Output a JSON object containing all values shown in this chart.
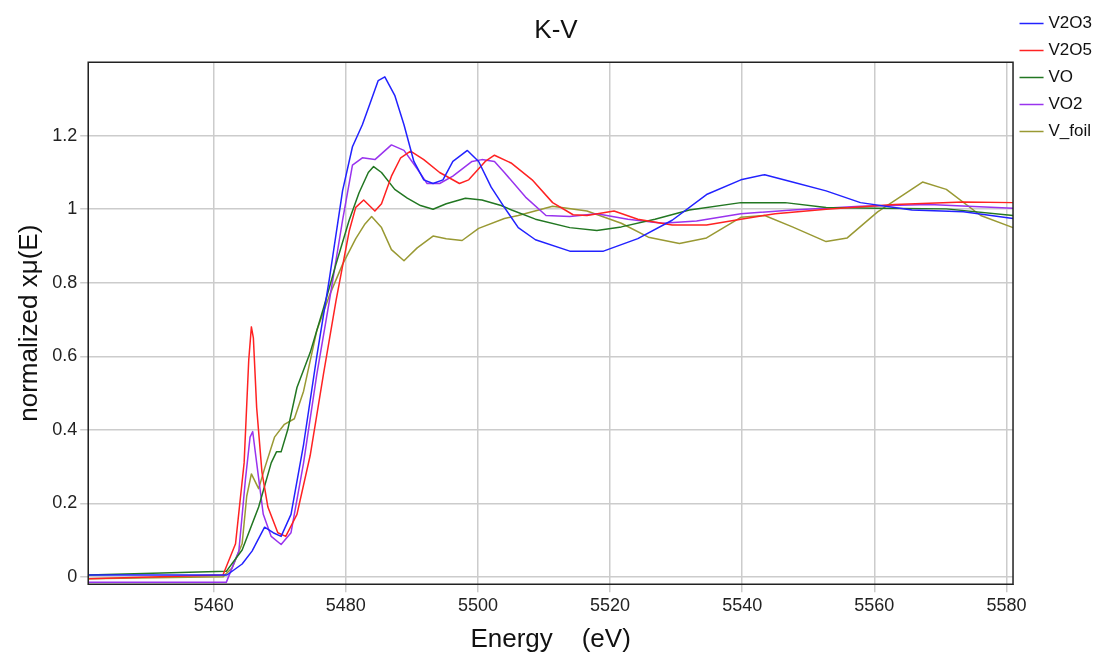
{
  "chart_data": {
    "type": "line",
    "title": "K-V",
    "xlabel": "Energy    (eV)",
    "ylabel": "normalized xμ(E)",
    "xlim": [
      5441,
      5581
    ],
    "ylim": [
      -0.02,
      1.4
    ],
    "xticks": [
      5460,
      5480,
      5500,
      5520,
      5540,
      5560,
      5580
    ],
    "yticks": [
      0,
      0.2,
      0.4,
      0.6,
      0.8,
      1,
      1.2
    ],
    "grid": true,
    "legend": "top right",
    "marker": "none",
    "line_style": "solid",
    "series": [
      {
        "name": "V2O3",
        "color": "#2222ff",
        "x": [
          5441,
          5462,
          5464.3,
          5465.8,
          5467.7,
          5469,
          5470.2,
          5471.7,
          5473.6,
          5475.6,
          5477.5,
          5479.5,
          5481,
          5482.5,
          5483.7,
          5484.9,
          5485.9,
          5487.4,
          5488.8,
          5490.3,
          5491.8,
          5493.2,
          5494.7,
          5496.2,
          5498.4,
          5500.1,
          5502,
          5504,
          5506.1,
          5508.7,
          5513.9,
          5519,
          5524.2,
          5529.4,
          5534.6,
          5539.8,
          5543.4,
          5547.6,
          5552.7,
          5557.9,
          5565.7,
          5573.5,
          5581
        ],
        "values": [
          0.005,
          0.005,
          0.035,
          0.07,
          0.135,
          0.12,
          0.11,
          0.17,
          0.36,
          0.6,
          0.81,
          1.05,
          1.17,
          1.23,
          1.29,
          1.35,
          1.36,
          1.31,
          1.23,
          1.13,
          1.08,
          1.07,
          1.08,
          1.13,
          1.16,
          1.13,
          1.06,
          1.005,
          0.95,
          0.917,
          0.886,
          0.886,
          0.92,
          0.97,
          1.04,
          1.08,
          1.094,
          1.074,
          1.05,
          1.018,
          0.998,
          0.993,
          0.975
        ]
      },
      {
        "name": "V2O5",
        "color": "#ff2222",
        "x": [
          5441,
          5461.4,
          5463.3,
          5464.6,
          5465.3,
          5465.7,
          5466,
          5466.5,
          5467.3,
          5468.2,
          5469.7,
          5470.9,
          5472.6,
          5474.6,
          5476.6,
          5478.5,
          5480.5,
          5481.5,
          5482.7,
          5484.4,
          5485.4,
          5486.9,
          5488.3,
          5489.8,
          5491.8,
          5494.2,
          5497.2,
          5498.6,
          5501.1,
          5502.5,
          5505.1,
          5508.2,
          5511.3,
          5514.4,
          5516.5,
          5520.6,
          5524.2,
          5529.4,
          5534.6,
          5539.8,
          5545,
          5552.7,
          5563.1,
          5573.5,
          5581
        ],
        "values": [
          -0.005,
          0.005,
          0.09,
          0.31,
          0.59,
          0.68,
          0.65,
          0.46,
          0.285,
          0.19,
          0.12,
          0.11,
          0.17,
          0.33,
          0.55,
          0.75,
          0.94,
          1.005,
          1.025,
          0.995,
          1.015,
          1.09,
          1.14,
          1.158,
          1.135,
          1.1,
          1.07,
          1.08,
          1.13,
          1.147,
          1.125,
          1.08,
          1.018,
          0.985,
          0.983,
          0.995,
          0.973,
          0.957,
          0.957,
          0.973,
          0.988,
          1,
          1.013,
          1.02,
          1.018
        ]
      },
      {
        "name": "VO",
        "color": "#227722",
        "x": [
          5441,
          5461.9,
          5464.3,
          5466.8,
          5468.7,
          5469.5,
          5470.2,
          5471.2,
          5472.6,
          5474.6,
          5476.6,
          5478.5,
          5480.5,
          5482,
          5483.4,
          5484.2,
          5485.4,
          5487.4,
          5489.3,
          5491.3,
          5493.2,
          5495.2,
          5498.1,
          5500.6,
          5503.5,
          5505.1,
          5508.7,
          5513.9,
          5518,
          5521.7,
          5526.8,
          5532,
          5539.8,
          5546.5,
          5552.7,
          5560.5,
          5570.9,
          5581
        ],
        "values": [
          0.005,
          0.015,
          0.073,
          0.19,
          0.31,
          0.34,
          0.34,
          0.4,
          0.515,
          0.61,
          0.73,
          0.85,
          0.97,
          1.045,
          1.1,
          1.116,
          1.1,
          1.054,
          1.03,
          1.01,
          1,
          1.015,
          1.03,
          1.025,
          1.01,
          0.998,
          0.973,
          0.95,
          0.942,
          0.952,
          0.973,
          0.998,
          1.018,
          1.018,
          1.005,
          1.003,
          1.001,
          0.983
        ]
      },
      {
        "name": "VO2",
        "color": "#9933ee",
        "x": [
          5441,
          5461.9,
          5463.8,
          5464.8,
          5465.5,
          5465.9,
          5466.5,
          5467.5,
          5468.7,
          5470.2,
          5471.7,
          5473.6,
          5475.6,
          5477.5,
          5479.5,
          5481,
          5482.5,
          5484.4,
          5486.9,
          5488.8,
          5490.8,
          5492.3,
          5494.2,
          5496.2,
          5499.1,
          5500.6,
          5502.5,
          5504,
          5507.2,
          5510.3,
          5513.9,
          5518,
          5522.7,
          5527.9,
          5533.1,
          5539.8,
          5547.6,
          5557.9,
          5568.3,
          5581
        ],
        "values": [
          -0.015,
          -0.015,
          0.07,
          0.265,
          0.38,
          0.395,
          0.31,
          0.17,
          0.11,
          0.088,
          0.12,
          0.31,
          0.55,
          0.75,
          0.97,
          1.12,
          1.14,
          1.135,
          1.175,
          1.16,
          1.11,
          1.07,
          1.07,
          1.09,
          1.13,
          1.135,
          1.13,
          1.1,
          1.033,
          0.983,
          0.98,
          0.988,
          0.973,
          0.962,
          0.968,
          0.988,
          0.998,
          1.008,
          1.013,
          1.003
        ]
      },
      {
        "name": "V_foil",
        "color": "#999933",
        "x": [
          5441,
          5461.4,
          5462.8,
          5464.3,
          5465,
          5465.7,
          5466.8,
          5467.7,
          5469.2,
          5470.7,
          5472.2,
          5473.6,
          5475.6,
          5477.5,
          5479.5,
          5481.5,
          5482.9,
          5483.9,
          5485.4,
          5486.9,
          5488.8,
          5490.8,
          5493.2,
          5495.2,
          5497.6,
          5500.1,
          5504,
          5506.1,
          5511.3,
          5516.5,
          5521.7,
          5525.8,
          5530.5,
          5534.6,
          5539.8,
          5543.4,
          5547.6,
          5552.7,
          5555.9,
          5560.5,
          5567.3,
          5570.9,
          5576.1,
          5581
        ],
        "values": [
          -0.005,
          0,
          0.025,
          0.09,
          0.22,
          0.28,
          0.24,
          0.295,
          0.38,
          0.415,
          0.43,
          0.505,
          0.67,
          0.765,
          0.85,
          0.92,
          0.96,
          0.98,
          0.95,
          0.89,
          0.86,
          0.895,
          0.927,
          0.92,
          0.915,
          0.948,
          0.975,
          0.983,
          1.008,
          0.995,
          0.962,
          0.924,
          0.907,
          0.922,
          0.978,
          0.983,
          0.952,
          0.912,
          0.922,
          0.993,
          1.074,
          1.054,
          0.983,
          0.95
        ]
      }
    ]
  }
}
